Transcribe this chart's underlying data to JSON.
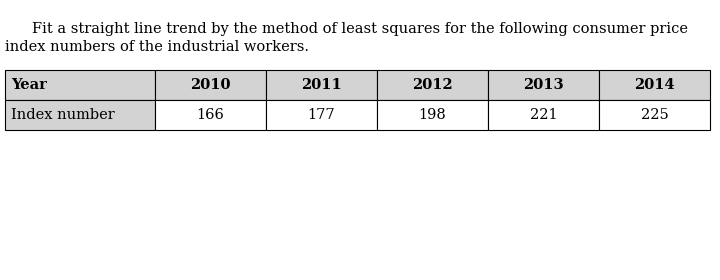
{
  "title_line1": "    Fit a straight line trend by the method of least squares for the following consumer price",
  "title_line2": "index numbers of the industrial workers.",
  "col_headers": [
    "Year",
    "2010",
    "2011",
    "2012",
    "2013",
    "2014"
  ],
  "row_label": "Index number",
  "row_values": [
    "166",
    "177",
    "198",
    "221",
    "225"
  ],
  "header_bg": "#d3d3d3",
  "cell_bg": "#ffffff",
  "border_color": "#000000",
  "text_color": "#000000",
  "background_color": "#ffffff",
  "title_fontsize": 10.5,
  "table_fontsize": 10.5,
  "fig_width": 7.2,
  "fig_height": 2.8
}
